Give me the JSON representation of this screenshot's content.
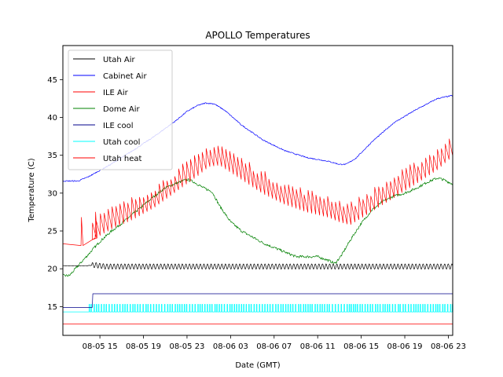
{
  "chart_data": {
    "type": "line",
    "title": "APOLLO Temperatures",
    "xlabel": "Date (GMT)",
    "ylabel": "Temperature (C)",
    "x_unit": "hours since 08-05 00:00 GMT",
    "xlim": [
      11.6,
      47.4
    ],
    "ylim": [
      11.2,
      49.5
    ],
    "grid": false,
    "legend_position": "top-left",
    "x_ticks": [
      {
        "value": 15,
        "label": "08-05 15"
      },
      {
        "value": 19,
        "label": "08-05 19"
      },
      {
        "value": 23,
        "label": "08-05 23"
      },
      {
        "value": 27,
        "label": "08-06 03"
      },
      {
        "value": 31,
        "label": "08-06 07"
      },
      {
        "value": 35,
        "label": "08-06 11"
      },
      {
        "value": 39,
        "label": "08-06 15"
      },
      {
        "value": 43,
        "label": "08-06 19"
      },
      {
        "value": 47,
        "label": "08-06 23"
      }
    ],
    "y_ticks": [
      15,
      20,
      25,
      30,
      35,
      40,
      45
    ],
    "series": [
      {
        "name": "Utah Air",
        "color": "#000000",
        "style": "oscillating",
        "x": [
          11.6,
          13.8,
          14.5,
          15.5,
          20,
          25,
          30,
          35,
          40,
          45,
          47.4
        ],
        "y": [
          20.4,
          20.4,
          20.5,
          20.3,
          20.3,
          20.3,
          20.3,
          20.3,
          20.3,
          20.3,
          20.3
        ],
        "amplitude": 0.35,
        "period_hours": 0.33
      },
      {
        "name": "Cabinet Air",
        "color": "#0000ff",
        "style": "smooth",
        "x": [
          11.6,
          13,
          14,
          16,
          18,
          20,
          22,
          23,
          24,
          24.7,
          25.5,
          26.5,
          28,
          30,
          32,
          34,
          36,
          37,
          37.6,
          38.5,
          40,
          42,
          44,
          46,
          47.4
        ],
        "y": [
          31.6,
          31.6,
          32.2,
          33.8,
          35.6,
          37.5,
          39.6,
          40.8,
          41.6,
          41.9,
          41.8,
          40.9,
          39,
          37,
          35.6,
          34.7,
          34.2,
          33.8,
          33.8,
          34.6,
          36.8,
          39.3,
          41,
          42.5,
          42.9
        ]
      },
      {
        "name": "ILE Air",
        "color": "#ff0000",
        "style": "spiky",
        "x": [
          11.6,
          13.2,
          14,
          16,
          18,
          20,
          22,
          24,
          25,
          26,
          28,
          30,
          32,
          34,
          36,
          37,
          38,
          40,
          42,
          44,
          46,
          47.4
        ],
        "y": [
          23.3,
          23,
          23.6,
          25.2,
          26.5,
          28.1,
          30.2,
          32.3,
          33.5,
          33.7,
          31.8,
          29.9,
          28.5,
          27.5,
          26.8,
          26.2,
          25.8,
          27.6,
          29.4,
          31.2,
          33.1,
          34.9
        ],
        "spike_height": 2.8,
        "spike_period_hours": 0.36,
        "spikes_start_hour": 14.3,
        "isolated_spikes": [
          {
            "x": 13.3,
            "y": 26.8
          },
          {
            "x": 14.6,
            "y": 27.5
          }
        ]
      },
      {
        "name": "Dome Air",
        "color": "#008000",
        "style": "noisy",
        "x": [
          11.6,
          12.2,
          13,
          14,
          15,
          16,
          17,
          18,
          19,
          20,
          21,
          22,
          23,
          23.6,
          24.5,
          25.3,
          26,
          27,
          28,
          30,
          32,
          33,
          34,
          35,
          36,
          36.6,
          37.2,
          38,
          39,
          40,
          41,
          42,
          43,
          44,
          45,
          46,
          46.5,
          47.4
        ],
        "y": [
          19.1,
          19.1,
          20.4,
          22,
          23.6,
          24.9,
          26,
          27.2,
          28.4,
          29.6,
          30.7,
          31.3,
          31.8,
          31.5,
          30.7,
          30.2,
          28.3,
          26.2,
          25,
          23.4,
          22.2,
          21.6,
          21.6,
          21.6,
          21.1,
          20.7,
          21.8,
          23.8,
          26,
          27.8,
          28.9,
          29.6,
          30,
          30.6,
          31.4,
          32,
          31.8,
          31.2
        ]
      },
      {
        "name": "ILE cool",
        "color": "#00008b",
        "style": "step",
        "x": [
          11.6,
          14.3,
          14.35,
          47.4
        ],
        "y": [
          14.9,
          14.9,
          16.7,
          16.7
        ]
      },
      {
        "name": "Utah cool",
        "color": "#00ffff",
        "style": "pulses",
        "baseline": 14.3,
        "pulse_top": 15.3,
        "x_start": 14.0,
        "x_end": 47.4,
        "pulse_period_hours": 0.22,
        "x": [
          11.6,
          47.4
        ],
        "y": [
          14.3,
          14.3
        ]
      },
      {
        "name": "Utah heat",
        "color": "#ff0000",
        "style": "flat",
        "x": [
          11.6,
          47.4
        ],
        "y": [
          12.7,
          12.7
        ]
      }
    ]
  }
}
